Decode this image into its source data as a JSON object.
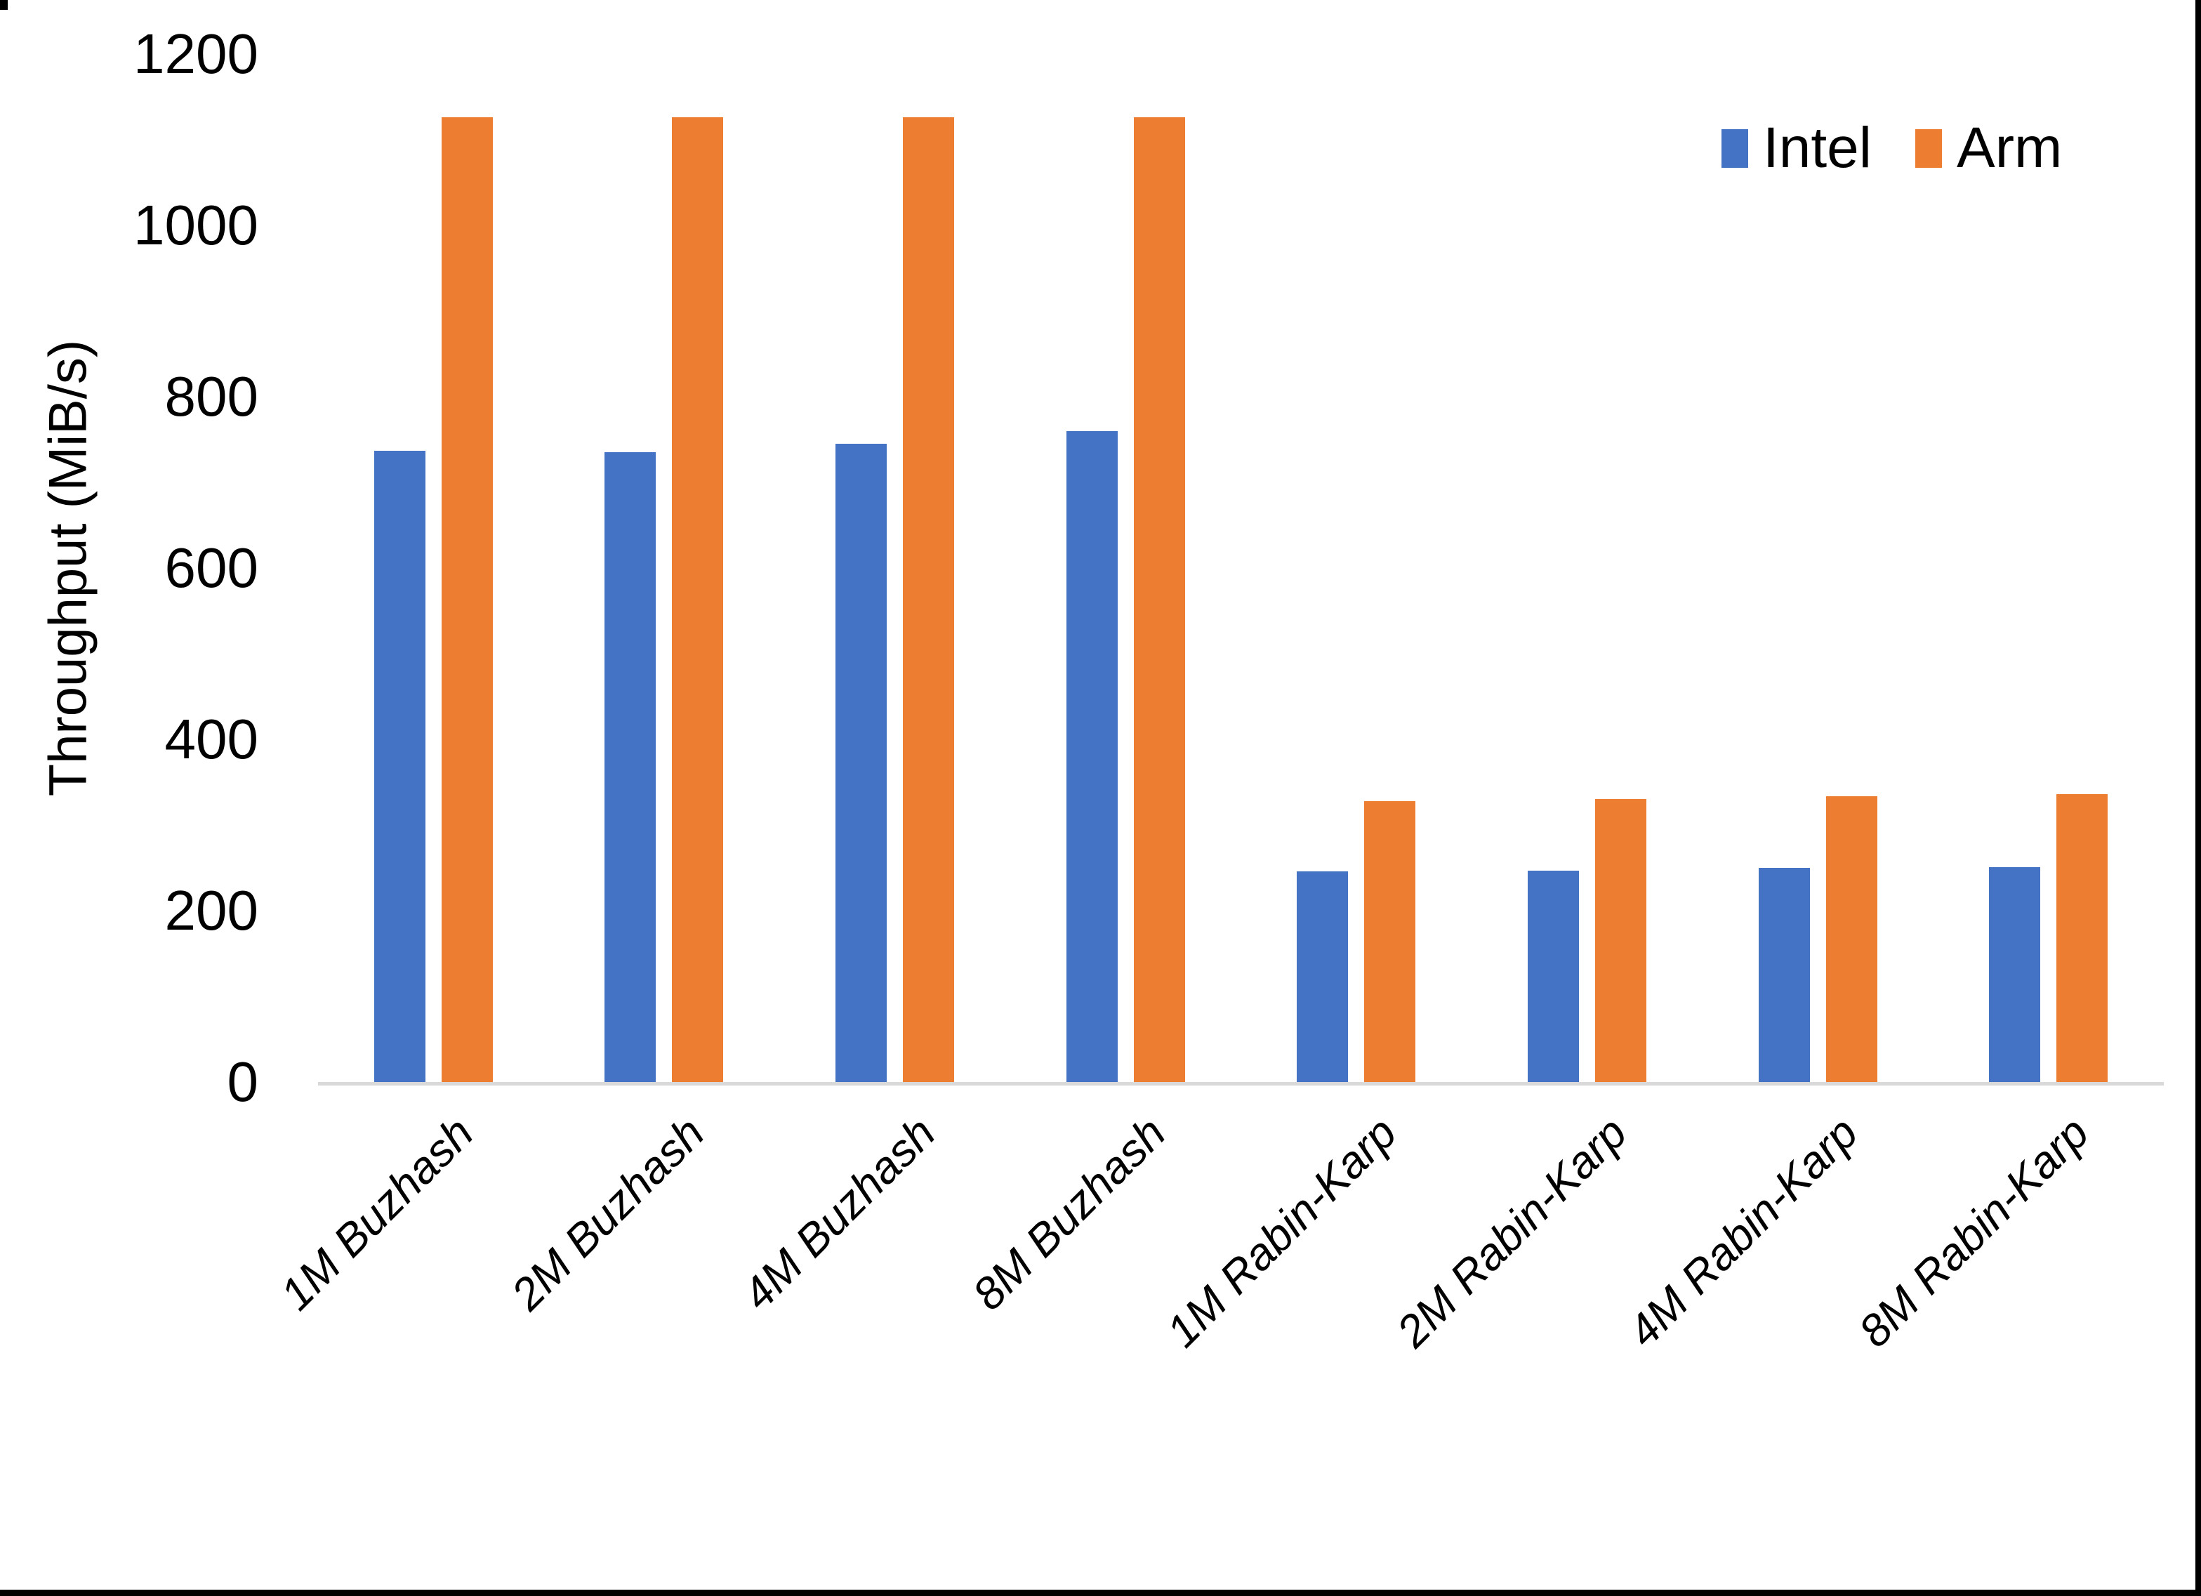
{
  "chart_data": {
    "type": "bar",
    "title": "",
    "xlabel": "",
    "ylabel": "Throughput (MiB/s)",
    "ylim": [
      0,
      1200
    ],
    "yticks": [
      0,
      200,
      400,
      600,
      800,
      1000,
      1200
    ],
    "grid": false,
    "legend_position": "top-right",
    "categories": [
      "1M Buzhash",
      "2M Buzhash",
      "4M Buzhash",
      "8M Buzhash",
      "1M Rabin-Karp",
      "2M Rabin-Karp",
      "4M Rabin-Karp",
      "8M Rabin-Karp"
    ],
    "series": [
      {
        "name": "Intel",
        "color": "#4472C4",
        "values": [
          737,
          735,
          745,
          760,
          246,
          247,
          250,
          251
        ]
      },
      {
        "name": "Arm",
        "color": "#ED7D31",
        "values": [
          1126,
          1126,
          1126,
          1126,
          328,
          330,
          334,
          336
        ]
      }
    ],
    "axis_line_color": "#D9D9D9",
    "text_color": "#000000"
  }
}
